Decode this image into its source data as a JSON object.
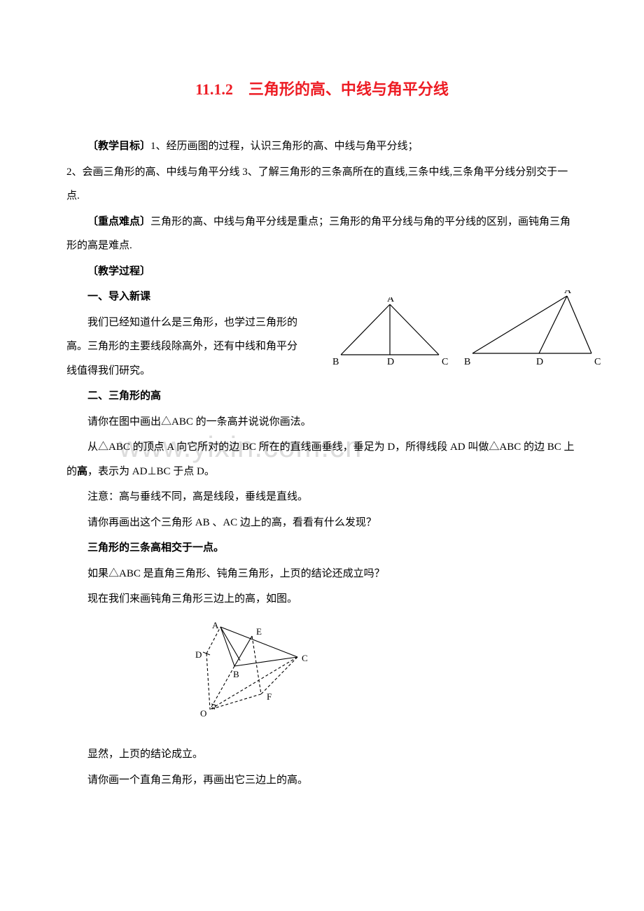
{
  "title_color": "#ed1c24",
  "title": "11.1.2　三角形的高、中线与角平分线",
  "mubiao_label": "〔教学目标〕",
  "mubiao_1": "1、经历画图的过程，认识三角形的高、中线与角平分线；",
  "mubiao_2": "2、会画三角形的高、中线与角平分线 3、了解三角形的三条高所在的直线,三条中线,三条角平分线分别交于一点.",
  "zhongdian_label": "〔重点难点〕",
  "zhongdian_text": "三角形的高、中线与角平分线是重点；三角形的角平分线与角的平分线的区别，画钝角三角形的高是难点.",
  "guocheng_label": "〔教学过程〕",
  "sec1": "一、导入新课",
  "sec1_p1": "我们已经知道什么是三角形，也学过三角形的高。三角形的主要线段除高外，还有中线和角平分线值得我们研究。",
  "sec2": "二、三角形的高",
  "sec2_p1": "请你在图中画出△ABC 的一条高并说说你画法。",
  "sec2_p2a": "从△ABC 的顶点 A 向它所对的边 BC 所在的直线画垂线，垂足为 D，所得线段 AD 叫做△ABC 的边 BC 上的",
  "sec2_p2b": "高",
  "sec2_p2c": "，表示为 AD⊥BC 于点 D。",
  "sec2_p3": "注意：高与垂线不同，高是线段，垂线是直线。",
  "sec2_p4": "请你再画出这个三角形 AB 、AC 边上的高，看看有什么发现？",
  "sec2_p5": "三角形的三条高相交于一点。",
  "sec2_p6": "如果△ABC 是直角三角形、钝角三角形，上页的结论还成立吗？",
  "sec2_p7": "现在我们来画钝角三角形三边上的高，如图。",
  "sec2_p8": "显然，上页的结论成立。",
  "sec2_p9": "请你画一个直角三角形，再画出它三边上的高。",
  "watermark_text": "www.yixin.com.cn",
  "fig1": {
    "labels": {
      "A": "A",
      "B": "B",
      "C": "C",
      "D": "D"
    },
    "stroke": "#000000",
    "font": "14px serif"
  },
  "fig2": {
    "labels": {
      "A": "A",
      "B": "B",
      "C": "C",
      "D": "D"
    },
    "stroke": "#000000",
    "font": "14px serif"
  },
  "fig3": {
    "labels": {
      "A": "A",
      "B": "B",
      "C": "C",
      "D": "D",
      "E": "E",
      "F": "F",
      "O": "O"
    },
    "stroke": "#000000",
    "font": "13px serif",
    "dash": [
      4,
      3
    ]
  },
  "text_color": "#000000",
  "body_fontsize": "15px"
}
